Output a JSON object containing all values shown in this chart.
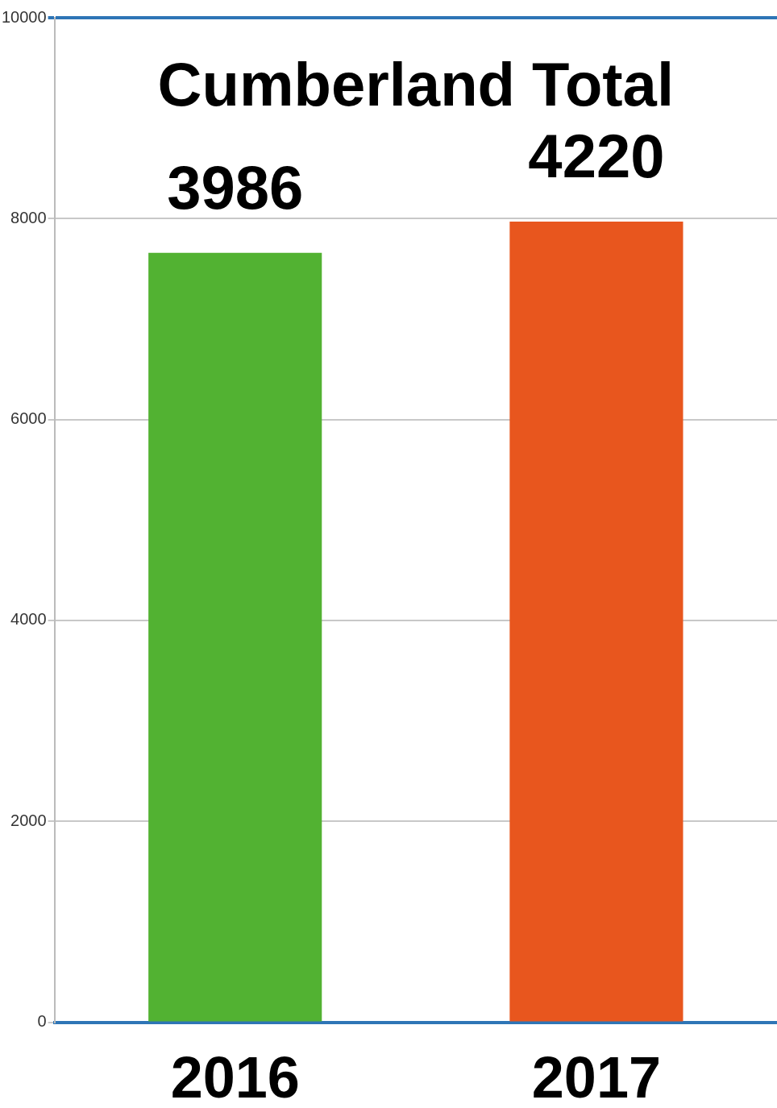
{
  "chart_data": {
    "type": "bar",
    "title": "Cumberland Total",
    "categories": [
      "2016",
      "2017"
    ],
    "values": [
      7660,
      7970
    ],
    "colors": [
      "#52b232",
      "#e8561e"
    ],
    "ylim": [
      0,
      10000
    ],
    "yticks": [
      0,
      2000,
      4000,
      6000,
      8000,
      10000
    ],
    "grid": "y",
    "legend": false,
    "annotations": [
      {
        "text": "3986",
        "x": "2016",
        "y": 7660
      },
      {
        "text": "4220",
        "x": "2017",
        "y": 7970
      }
    ]
  }
}
